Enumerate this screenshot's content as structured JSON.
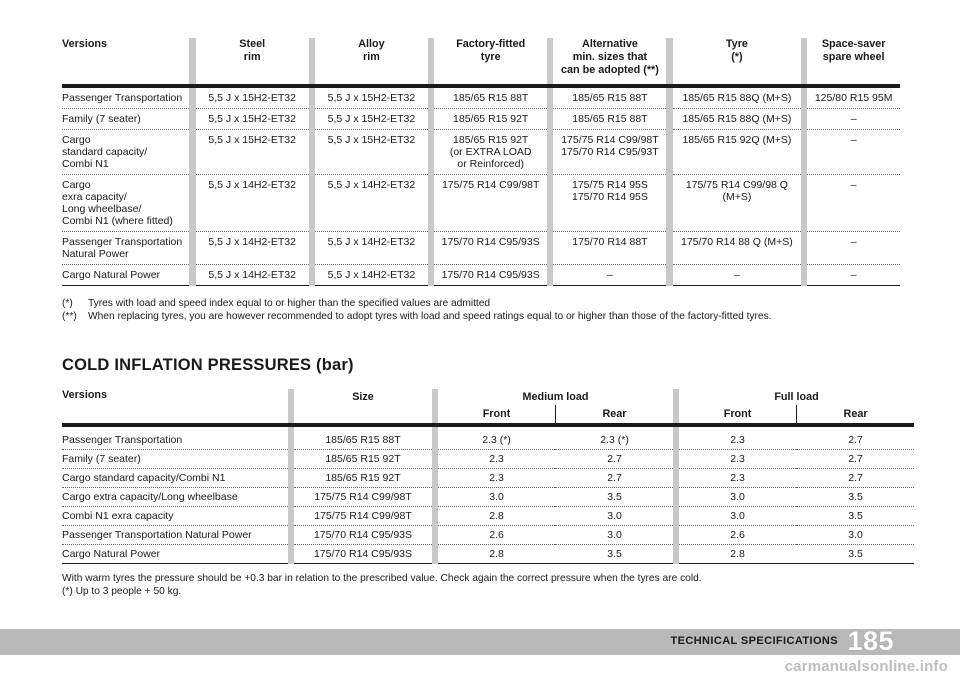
{
  "tyre_table": {
    "headers": [
      "Versions",
      "Steel\nrim",
      "Alloy\nrim",
      "Factory-fitted\ntyre",
      "Alternative\nmin. sizes that\ncan be adopted (**)",
      "Tyre\n(*)",
      "Space-saver\nspare wheel"
    ],
    "rows": [
      [
        "Passenger Transportation",
        "5,5 J x 15H2-ET32",
        "5,5 J x 15H2-ET32",
        "185/65 R15 88T",
        "185/65 R15 88T",
        "185/65 R15 88Q (M+S)",
        "125/80 R15 95M"
      ],
      [
        "Family (7 seater)",
        "5,5 J x 15H2-ET32",
        "5,5 J x 15H2-ET32",
        "185/65 R15 92T",
        "185/65 R15 88T",
        "185/65 R15 88Q (M+S)",
        "–"
      ],
      [
        "Cargo\nstandard capacity/\nCombi N1",
        "5,5 J x 15H2-ET32",
        "5,5 J x 15H2-ET32",
        "185/65 R15 92T\n(or EXTRA LOAD\nor Reinforced)",
        "175/75 R14 C99/98T\n175/70 R14 C95/93T",
        "185/65 R15 92Q (M+S)",
        "–"
      ],
      [
        "Cargo\nexra capacity/\nLong wheelbase/\nCombi N1 (where fitted)",
        "5,5 J x 14H2-ET32",
        "5,5 J x 14H2-ET32",
        "175/75 R14 C99/98T",
        "175/75 R14 95S\n175/70 R14 95S",
        "175/75 R14 C99/98 Q (M+S)",
        "–"
      ],
      [
        "Passenger Transportation\nNatural Power",
        "5,5 J x 14H2-ET32",
        "5,5 J x 14H2-ET32",
        "175/70 R14 C95/93S",
        "175/70 R14 88T",
        "175/70 R14 88 Q (M+S)",
        "–"
      ],
      [
        "Cargo Natural Power",
        "5,5 J x 14H2-ET32",
        "5,5 J x 14H2-ET32",
        "175/70 R14 C95/93S",
        "–",
        "–",
        "–"
      ]
    ],
    "notes": [
      {
        "key": "(*)",
        "text": "Tyres with load and speed index equal to or higher than the specified values are admitted"
      },
      {
        "key": "(**)",
        "text": "When replacing tyres, you are however recommended to adopt tyres with load and speed ratings equal to or higher than those of the factory-fitted tyres."
      }
    ]
  },
  "pressure_section": {
    "title": "COLD INFLATION PRESSURES (bar)",
    "headers": {
      "versions": "Versions",
      "size": "Size",
      "medium_load": "Medium load",
      "full_load": "Full load",
      "front": "Front",
      "rear": "Rear"
    },
    "rows": [
      [
        "Passenger Transportation",
        "185/65 R15 88T",
        "2.3 (*)",
        "2.3 (*)",
        "2.3",
        "2.7"
      ],
      [
        "Family (7 seater)",
        "185/65 R15 92T",
        "2.3",
        "2.7",
        "2.3",
        "2.7"
      ],
      [
        "Cargo standard capacity/Combi N1",
        "185/65 R15 92T",
        "2.3",
        "2.7",
        "2.3",
        "2.7"
      ],
      [
        "Cargo extra capacity/Long wheelbase",
        "175/75 R14 C99/98T",
        "3.0",
        "3.5",
        "3.0",
        "3.5"
      ],
      [
        "Combi N1 exra capacity",
        "175/75 R14 C99/98T",
        "2.8",
        "3.0",
        "3.0",
        "3.5"
      ],
      [
        "Passenger Transportation Natural Power",
        "175/70 R14 C95/93S",
        "2.6",
        "3.0",
        "2.6",
        "3.0"
      ],
      [
        "Cargo Natural Power",
        "175/70 R14 C95/93S",
        "2.8",
        "3.5",
        "2.8",
        "3.5"
      ]
    ],
    "notes": [
      "With warm tyres the pressure should be +0.3 bar in relation to the prescribed value. Check again the correct pressure when the tyres are cold.",
      "(*) Up to 3 people + 50 kg."
    ]
  },
  "footer": {
    "section_label": "TECHNICAL SPECIFICATIONS",
    "page_number": "185",
    "watermark": "carmanualsonline.info"
  },
  "colors": {
    "separator_grey": "#c9c9c9",
    "footer_grey": "#b9b9b9",
    "text": "#1a1a1a"
  }
}
